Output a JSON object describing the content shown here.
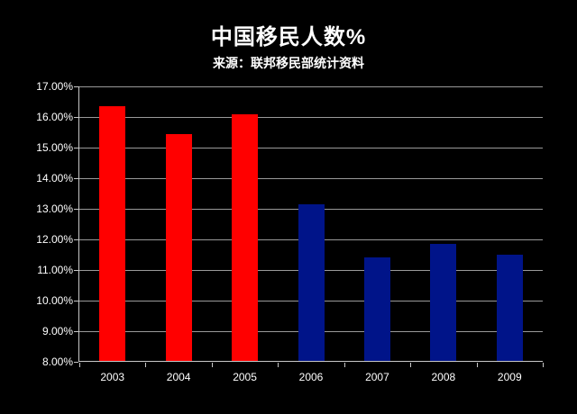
{
  "header": {
    "title": "中国移民人数%",
    "subtitle": "来源：联邦移民部统计资料"
  },
  "chart_data": {
    "type": "bar",
    "title": "中国移民人数%",
    "subtitle": "来源：联邦移民部统计资料",
    "categories": [
      "2003",
      "2004",
      "2005",
      "2006",
      "2007",
      "2008",
      "2009"
    ],
    "values": [
      16.35,
      15.45,
      16.1,
      13.15,
      11.4,
      11.85,
      11.5
    ],
    "bar_colors": [
      "#ff0000",
      "#ff0000",
      "#ff0000",
      "#001489",
      "#001489",
      "#001489",
      "#001489"
    ],
    "xlabel": "",
    "ylabel": "",
    "ylim": [
      8,
      17
    ],
    "ytick_step": 1,
    "ytick_labels": [
      "8.00%",
      "9.00%",
      "10.00%",
      "11.00%",
      "12.00%",
      "13.00%",
      "14.00%",
      "15.00%",
      "16.00%",
      "17.00%"
    ],
    "grid": true,
    "legend_position": "none",
    "colors": {
      "background": "#000000",
      "red_series": "#ff0000",
      "blue_series": "#001489",
      "gridline": "#999999",
      "axis": "#c8c8c8",
      "text": "#ffffff"
    }
  }
}
